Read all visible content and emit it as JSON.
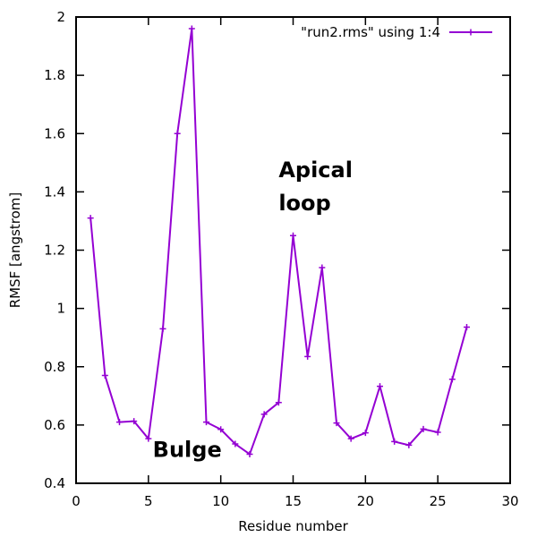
{
  "chart_data": {
    "type": "line",
    "title": "",
    "xlabel": "Residue number",
    "ylabel": "RMSF [angstrom]",
    "xlim": [
      0,
      30
    ],
    "ylim": [
      0.4,
      2
    ],
    "x_ticks": [
      0,
      5,
      10,
      15,
      20,
      25,
      30
    ],
    "y_ticks": [
      0.4,
      0.6,
      0.8,
      1,
      1.2,
      1.4,
      1.6,
      1.8,
      2
    ],
    "x_tick_labels": [
      "0",
      "5",
      "10",
      "15",
      "20",
      "25",
      "30"
    ],
    "y_tick_labels": [
      "0.4",
      "0.6",
      "0.8",
      "1",
      "1.2",
      "1.4",
      "1.6",
      "1.8",
      "2"
    ],
    "grid": false,
    "legend_position": "top-right",
    "series": [
      {
        "name": "\"run2.rms\" using 1:4",
        "color": "#9400d3",
        "marker": "plus",
        "x": [
          1,
          2,
          3,
          4,
          5,
          6,
          7,
          8,
          9,
          10,
          11,
          12,
          13,
          14,
          15,
          16,
          17,
          18,
          19,
          20,
          21,
          22,
          23,
          24,
          25,
          26,
          27
        ],
        "y": [
          1.31,
          0.77,
          0.61,
          0.613,
          0.553,
          0.93,
          1.6,
          1.96,
          0.61,
          0.585,
          0.535,
          0.5,
          0.637,
          0.677,
          1.25,
          0.835,
          1.14,
          0.607,
          0.553,
          0.573,
          0.733,
          0.543,
          0.531,
          0.586,
          0.575,
          0.757,
          0.936
        ]
      }
    ],
    "annotations": [
      {
        "lines": [
          "Apical",
          "loop"
        ],
        "x": 14,
        "y": 1.45
      },
      {
        "lines": [
          "Bulge"
        ],
        "x": 5.3,
        "y": 0.49
      }
    ]
  }
}
